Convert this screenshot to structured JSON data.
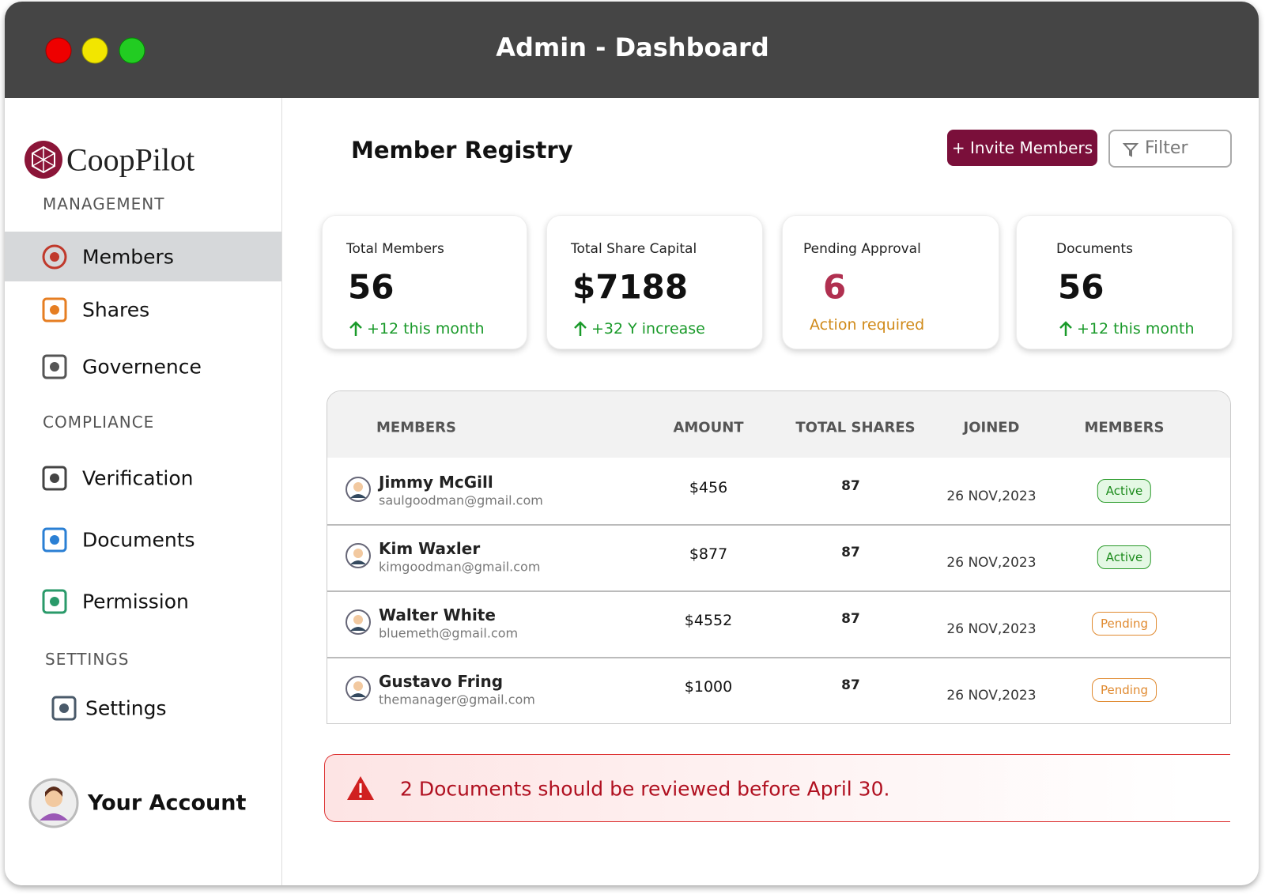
{
  "window": {
    "title": "Admin - Dashboard"
  },
  "sidebar": {
    "logo": "CoopPilot",
    "sections": [
      {
        "heading": "MANAGEMENT",
        "items": [
          "Members",
          "Shares",
          "Governence"
        ]
      },
      {
        "heading": "COMPLIANCE",
        "items": [
          "Verification",
          "Documents",
          "Permission"
        ]
      },
      {
        "heading": "SETTINGS",
        "items": [
          "Settings"
        ]
      }
    ],
    "account": "Your Account"
  },
  "header": {
    "title": "Member Registry",
    "invite_button": "+ Invite Members",
    "filter_button": "Filter"
  },
  "stats": [
    {
      "label": "Total Members",
      "value": 56,
      "note": "+12 this month"
    },
    {
      "label": "Total Share Capital",
      "value": "$7188",
      "note": "+32 Y increase"
    },
    {
      "label": "Pending Approval",
      "value": 6,
      "note": "Action required"
    },
    {
      "label": "Documents",
      "value": 56,
      "note": "+12 this month"
    }
  ],
  "table": {
    "columns": [
      "MEMBERS",
      "AMOUNT",
      "TOTAL SHARES",
      "JOINED",
      "MEMBERS"
    ],
    "rows": [
      {
        "name": "Jimmy McGill",
        "email": "saulgoodman@gmail.com",
        "amount": "$456",
        "shares": 87,
        "joined": "26 NOV,2023",
        "status": "Active"
      },
      {
        "name": "Kim Waxler",
        "email": "kimgoodman@gmail.com",
        "amount": "$877",
        "shares": 87,
        "joined": "26 NOV,2023",
        "status": "Active"
      },
      {
        "name": "Walter White",
        "email": "bluemeth@gmail.com",
        "amount": "$4552",
        "shares": 87,
        "joined": "26 NOV,2023",
        "status": "Pending"
      },
      {
        "name": "Gustavo Fring",
        "email": "themanager@gmail.com",
        "amount": "$1000",
        "shares": 87,
        "joined": "26 NOV,2023",
        "status": "Pending"
      }
    ]
  },
  "alert": "2 Documents should be reviewed before April 30."
}
